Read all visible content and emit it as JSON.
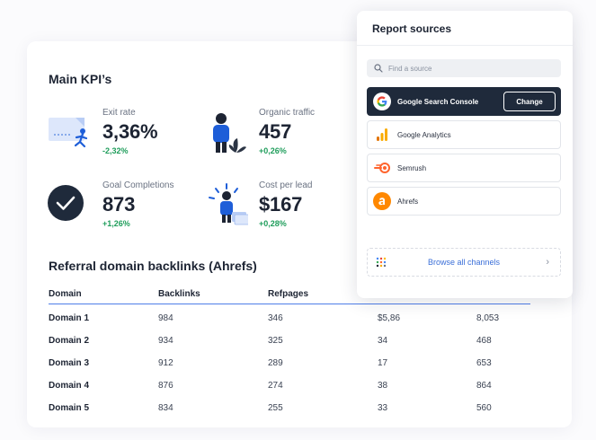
{
  "main": {
    "title": "Main KPI’s",
    "kpis": [
      {
        "label": "Exit rate",
        "value": "3,36%",
        "change": "-2,32%"
      },
      {
        "label": "Organic traffic",
        "value": "457",
        "change": "+0,26%"
      },
      {
        "label": "Goal Completions",
        "value": "873",
        "change": "+1,26%"
      },
      {
        "label": "Cost per lead",
        "value": "$167",
        "change": "+0,28%"
      }
    ]
  },
  "backlinks": {
    "title": "Referral domain backlinks (Ahrefs)",
    "headers": [
      "Domain",
      "Backlinks",
      "Refpages",
      "",
      ""
    ],
    "rows": [
      [
        "Domain 1",
        "984",
        "346",
        "$5,86",
        "8,053"
      ],
      [
        "Domain 2",
        "934",
        "325",
        "34",
        "468"
      ],
      [
        "Domain 3",
        "912",
        "289",
        "17",
        "653"
      ],
      [
        "Domain 4",
        "876",
        "274",
        "38",
        "864"
      ],
      [
        "Domain 5",
        "834",
        "255",
        "33",
        "560"
      ]
    ]
  },
  "panel": {
    "title": "Report sources",
    "search_placeholder": "Find a source",
    "sources": [
      {
        "name": "Google Search Console",
        "icon": "google-icon",
        "active": true
      },
      {
        "name": "Google Analytics",
        "icon": "analytics-icon",
        "active": false
      },
      {
        "name": "Semrush",
        "icon": "semrush-icon",
        "active": false
      },
      {
        "name": "Ahrefs",
        "icon": "ahrefs-icon",
        "active": false
      }
    ],
    "change_label": "Change",
    "browse_label": "Browse all channels"
  },
  "colors": {
    "accent": "#3b6fd8",
    "positive": "#1f9d5b",
    "dark": "#1f2a3b"
  }
}
